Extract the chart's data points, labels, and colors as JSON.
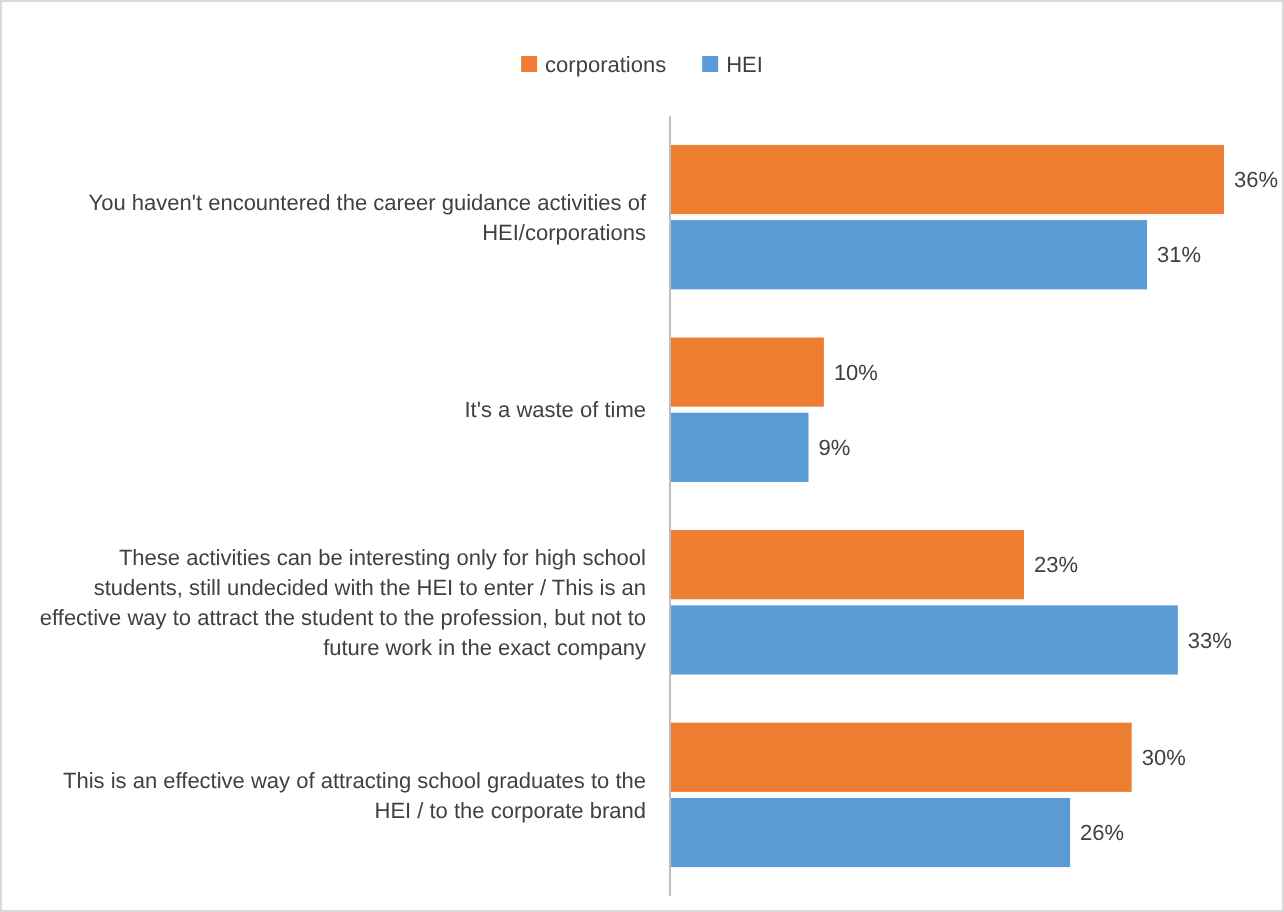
{
  "chart_data": {
    "type": "bar",
    "orientation": "horizontal",
    "legend": "top",
    "categories": [
      "You haven't encountered the career guidance activities of HEI/corporations",
      "It's a waste of time",
      "These activities can be interesting only for high school students, still undecided with the HEI to enter / This is an effective way to attract the student to the profession, but not to future work in the exact company",
      "This is an effective way of attracting school graduates to the HEI / to the corporate brand"
    ],
    "series": [
      {
        "name": "corporations",
        "color": "#ed7d31",
        "values": [
          36,
          10,
          23,
          30
        ],
        "value_labels": [
          "36%",
          "10%",
          "23%",
          "30%"
        ]
      },
      {
        "name": "HEI",
        "color": "#5b9bd5",
        "values": [
          31,
          9,
          33,
          26
        ],
        "value_labels": [
          "31%",
          "9%",
          "33%",
          "26%"
        ]
      }
    ]
  }
}
